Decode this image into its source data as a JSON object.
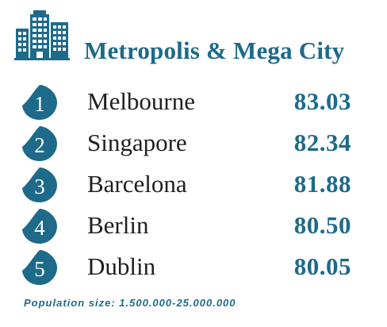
{
  "header": {
    "icon": "city-buildings-icon",
    "title": "Metropolis & Mega City"
  },
  "colors": {
    "accent": "#1d6a8a",
    "text": "#1f1f1f",
    "badge": "#1d6a8a"
  },
  "rankings": [
    {
      "rank": "1",
      "city": "Melbourne",
      "score": "83.03"
    },
    {
      "rank": "2",
      "city": "Singapore",
      "score": "82.34"
    },
    {
      "rank": "3",
      "city": "Barcelona",
      "score": "81.88"
    },
    {
      "rank": "4",
      "city": "Berlin",
      "score": "80.50"
    },
    {
      "rank": "5",
      "city": "Dublin",
      "score": "80.05"
    }
  ],
  "footnote": "Population size: 1.500.000-25.000.000"
}
